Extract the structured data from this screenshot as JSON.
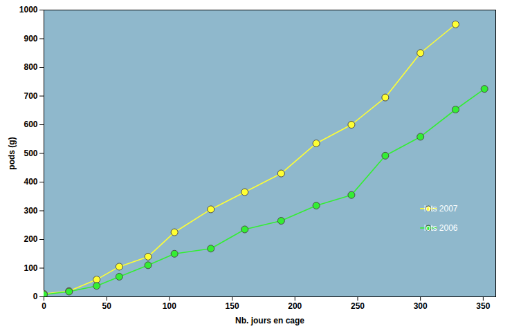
{
  "chart_data": {
    "type": "line",
    "x_label": "Nb. jours en cage",
    "y_label": "pods (g)",
    "x": [
      0,
      20,
      42,
      60,
      83,
      104,
      133,
      160,
      189,
      217,
      245,
      272,
      300,
      328,
      351
    ],
    "series": [
      {
        "name": "lots 2007",
        "color": "#ffff33",
        "values": [
          10,
          20,
          60,
          105,
          140,
          225,
          305,
          365,
          430,
          535,
          600,
          695,
          850,
          950,
          null
        ]
      },
      {
        "name": "lots 2006",
        "color": "#33ee33",
        "values": [
          8,
          18,
          38,
          70,
          110,
          150,
          168,
          235,
          265,
          318,
          355,
          492,
          558,
          653,
          725
        ]
      }
    ],
    "xlim": [
      0,
      360
    ],
    "xticks": [
      0,
      50,
      100,
      150,
      200,
      250,
      300,
      350
    ],
    "ylim": [
      0,
      1000
    ],
    "yticks": [
      0,
      100,
      200,
      300,
      400,
      500,
      600,
      700,
      800,
      900,
      1000
    ],
    "grid": false,
    "marker": "circle",
    "legend": "lower right"
  }
}
